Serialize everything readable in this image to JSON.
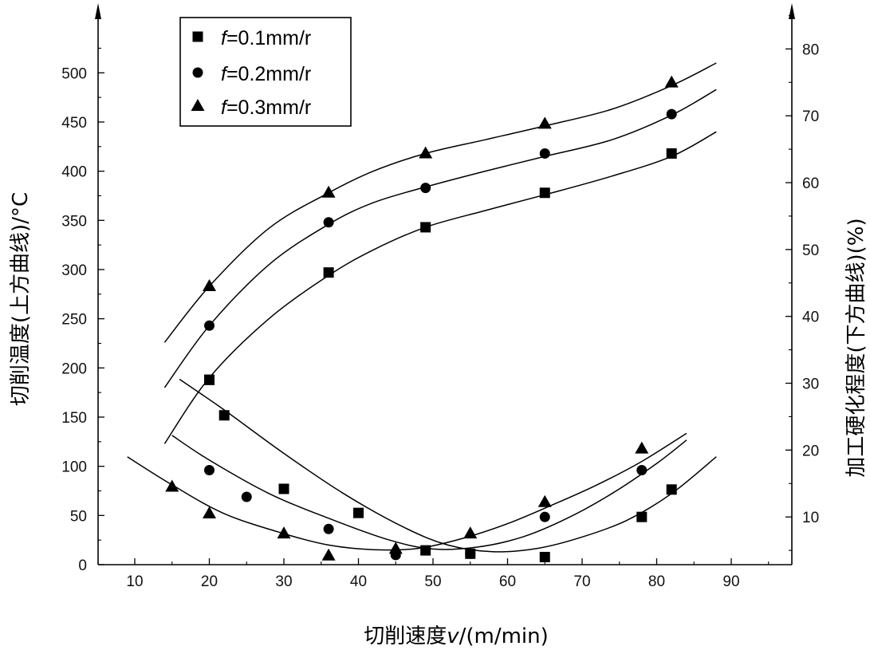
{
  "chart_data": {
    "type": "scatter",
    "x_axis": {
      "label_prefix": "切削速度",
      "label_var": "v",
      "label_suffix": "/(m/min)",
      "range": [
        5,
        98
      ],
      "ticks": [
        10,
        20,
        30,
        40,
        50,
        60,
        70,
        80,
        90
      ]
    },
    "y_left_axis": {
      "label": "切削温度(上方曲线)/°C",
      "range": [
        0,
        560
      ],
      "ticks": [
        0,
        50,
        100,
        150,
        200,
        250,
        300,
        350,
        400,
        450,
        500
      ]
    },
    "y_right_axis": {
      "label": "加工硬化程度(下方曲线)(%)",
      "range": [
        2,
        88
      ],
      "ticks": [
        10,
        20,
        30,
        40,
        50,
        60,
        70,
        80
      ]
    },
    "legend": {
      "position": "top-left",
      "entries": [
        {
          "marker": "square",
          "var": "f",
          "text": "=0.1mm/r"
        },
        {
          "marker": "circle",
          "var": "f",
          "text": "=0.2mm/r"
        },
        {
          "marker": "triangle",
          "var": "f",
          "text": "=0.3mm/r"
        }
      ]
    },
    "series": [
      {
        "legend": "f=0.1mm/r",
        "group": "temperature",
        "axis": "left",
        "marker": "square",
        "points": [
          [
            20,
            188
          ],
          [
            36,
            297
          ],
          [
            49,
            343
          ],
          [
            65,
            378
          ],
          [
            82,
            418
          ]
        ],
        "curve": [
          [
            14,
            123
          ],
          [
            20,
            190
          ],
          [
            28,
            250
          ],
          [
            36,
            294
          ],
          [
            42,
            320
          ],
          [
            49,
            343
          ],
          [
            57,
            360
          ],
          [
            65,
            376
          ],
          [
            74,
            395
          ],
          [
            82,
            415
          ],
          [
            88,
            440
          ]
        ]
      },
      {
        "legend": "f=0.2mm/r",
        "group": "temperature",
        "axis": "left",
        "marker": "circle",
        "points": [
          [
            20,
            243
          ],
          [
            36,
            348
          ],
          [
            49,
            383
          ],
          [
            65,
            418
          ],
          [
            82,
            458
          ]
        ],
        "curve": [
          [
            14,
            180
          ],
          [
            20,
            243
          ],
          [
            28,
            305
          ],
          [
            36,
            346
          ],
          [
            42,
            368
          ],
          [
            49,
            384
          ],
          [
            57,
            400
          ],
          [
            65,
            415
          ],
          [
            74,
            432
          ],
          [
            82,
            457
          ],
          [
            88,
            483
          ]
        ]
      },
      {
        "legend": "f=0.3mm/r",
        "group": "temperature",
        "axis": "left",
        "marker": "triangle",
        "points": [
          [
            20,
            283
          ],
          [
            36,
            378
          ],
          [
            49,
            418
          ],
          [
            65,
            448
          ],
          [
            82,
            490
          ]
        ],
        "curve": [
          [
            14,
            226
          ],
          [
            20,
            283
          ],
          [
            28,
            342
          ],
          [
            36,
            378
          ],
          [
            42,
            400
          ],
          [
            49,
            418
          ],
          [
            57,
            432
          ],
          [
            65,
            446
          ],
          [
            74,
            463
          ],
          [
            82,
            487
          ],
          [
            88,
            510
          ]
        ]
      },
      {
        "legend": "f=0.1mm/r",
        "group": "hardening",
        "axis": "right",
        "marker": "square",
        "points": [
          [
            20,
            30.5
          ],
          [
            22,
            25.2
          ],
          [
            30,
            14.2
          ],
          [
            40,
            10.6
          ],
          [
            49,
            5.0
          ],
          [
            55,
            4.5
          ],
          [
            65,
            4.0
          ],
          [
            78,
            10.0
          ],
          [
            82,
            14.1
          ]
        ],
        "curve": [
          [
            16,
            30.6
          ],
          [
            22,
            26.0
          ],
          [
            30,
            19.5
          ],
          [
            38,
            13.5
          ],
          [
            46,
            8.5
          ],
          [
            52,
            5.8
          ],
          [
            58,
            4.8
          ],
          [
            64,
            5.3
          ],
          [
            70,
            7.0
          ],
          [
            76,
            9.5
          ],
          [
            82,
            13.5
          ],
          [
            88,
            19.0
          ]
        ]
      },
      {
        "legend": "f=0.2mm/r",
        "group": "hardening",
        "axis": "right",
        "marker": "circle",
        "points": [
          [
            20,
            17.0
          ],
          [
            25,
            13.0
          ],
          [
            36,
            8.2
          ],
          [
            45,
            4.3
          ],
          [
            55,
            4.5
          ],
          [
            65,
            10.0
          ],
          [
            78,
            17.0
          ]
        ],
        "curve": [
          [
            15,
            22.2
          ],
          [
            20,
            18.5
          ],
          [
            28,
            13.5
          ],
          [
            36,
            9.8
          ],
          [
            44,
            6.6
          ],
          [
            50,
            5.2
          ],
          [
            56,
            5.5
          ],
          [
            62,
            7.0
          ],
          [
            68,
            9.8
          ],
          [
            74,
            13.5
          ],
          [
            80,
            18.0
          ],
          [
            84,
            21.5
          ]
        ]
      },
      {
        "legend": "f=0.3mm/r",
        "group": "hardening",
        "axis": "right",
        "marker": "triangle",
        "points": [
          [
            15,
            14.5
          ],
          [
            20,
            10.5
          ],
          [
            30,
            7.5
          ],
          [
            36,
            4.2
          ],
          [
            45,
            5.2
          ],
          [
            55,
            7.5
          ],
          [
            65,
            12.2
          ],
          [
            78,
            20.2
          ]
        ],
        "curve": [
          [
            9,
            19.0
          ],
          [
            15,
            14.8
          ],
          [
            22,
            10.5
          ],
          [
            30,
            7.5
          ],
          [
            36,
            5.8
          ],
          [
            42,
            5.1
          ],
          [
            48,
            5.3
          ],
          [
            54,
            6.8
          ],
          [
            60,
            9.0
          ],
          [
            66,
            11.8
          ],
          [
            72,
            14.8
          ],
          [
            78,
            18.3
          ],
          [
            84,
            22.5
          ]
        ]
      }
    ]
  }
}
